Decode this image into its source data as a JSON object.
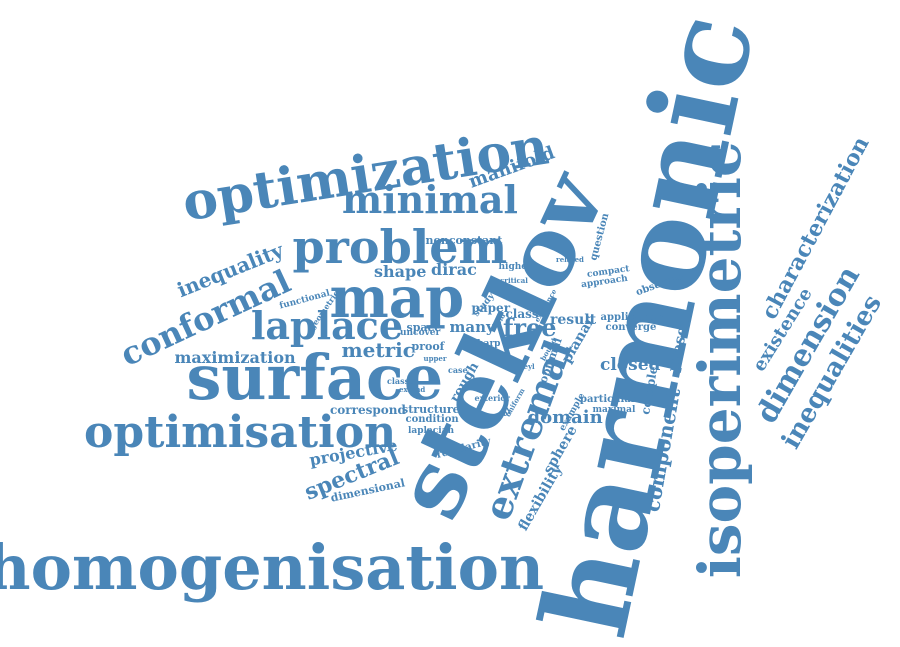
{
  "colors": {
    "word": "#4a86b8",
    "background": "#ffffff"
  },
  "words": [
    "harmonic",
    "steklov",
    "isoperimetric",
    "homogenisation",
    "surface",
    "optimization",
    "optimisation",
    "map",
    "problem",
    "minimal",
    "laplace",
    "conformal",
    "extremal",
    "dimension",
    "inequalities",
    "characterization",
    "existence",
    "component",
    "inequality",
    "manifold",
    "metric",
    "free",
    "spectral",
    "maximization",
    "projective",
    "domain",
    "closed",
    "present",
    "sphere",
    "flexibility",
    "complex",
    "shape",
    "dirac",
    "result",
    "class",
    "many",
    "space",
    "proof",
    "planar",
    "nonconstant",
    "question",
    "paper",
    "application",
    "converge",
    "compact",
    "approach",
    "observed",
    "higher",
    "study",
    "critical",
    "related",
    "functional",
    "geometric",
    "correspond",
    "structure",
    "condition",
    "laplacian",
    "regularity",
    "dimensional",
    "rough",
    "optimal",
    "uncover",
    "sharp",
    "particular",
    "maximal",
    "example",
    "exterior",
    "natural",
    "weyl",
    "classes",
    "upper",
    "bound",
    "case",
    "extend",
    "existence",
    "uniform",
    "fold"
  ]
}
